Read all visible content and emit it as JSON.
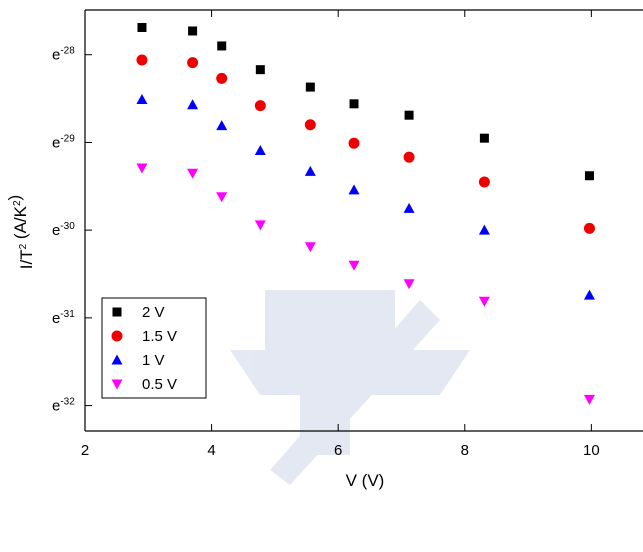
{
  "chart_data": {
    "type": "scatter",
    "x_label": "V (V)",
    "y_label": "I/T2 (A/K2)",
    "x": [
      2.9,
      3.7,
      4.16,
      4.77,
      5.56,
      6.25,
      7.12,
      8.31,
      9.97
    ],
    "series": [
      {
        "name": "2 V",
        "color": "#000000",
        "marker": "square",
        "values": [
          9.43e-13,
          9.06e-13,
          7.64e-13,
          5.83e-13,
          4.78e-13,
          3.95e-13,
          3.47e-13,
          2.67e-13,
          1.74e-13
        ]
      },
      {
        "name": "1.5 V",
        "color": "#ee0000",
        "marker": "circle",
        "values": [
          6.51e-13,
          6.32e-13,
          5.28e-13,
          3.87e-13,
          3.11e-13,
          2.52e-13,
          2.15e-13,
          1.62e-13,
          9.55e-14
        ]
      },
      {
        "name": "1 V",
        "color": "#0000ff",
        "marker": "triangle-up",
        "values": [
          4.15e-13,
          3.91e-13,
          3.08e-13,
          2.32e-13,
          1.83e-13,
          1.48e-13,
          1.2e-13,
          9.36e-14,
          4.46e-14
        ]
      },
      {
        "name": "0.5 V",
        "color": "#ff00ff",
        "marker": "triangle-down",
        "values": [
          1.9e-13,
          1.79e-13,
          1.37e-13,
          9.94e-14,
          7.74e-14,
          6.27e-14,
          5.08e-14,
          4.16e-14,
          1.36e-14
        ]
      }
    ],
    "xlim": [
      2,
      10.8
    ],
    "xticks": [
      2,
      4,
      6,
      8,
      10
    ],
    "ylim": [
      1.151e-12,
      9.48e-15
    ],
    "y_log_base": "e",
    "yticks": [
      {
        "value": 6.914e-13,
        "label": "e-28"
      },
      {
        "value": 2.544e-13,
        "label": "e-29"
      },
      {
        "value": 9.358e-14,
        "label": "e-30"
      },
      {
        "value": 3.443e-14,
        "label": "e-31"
      },
      {
        "value": 1.266e-14,
        "label": "e-32"
      }
    ],
    "legend": "lower left"
  }
}
